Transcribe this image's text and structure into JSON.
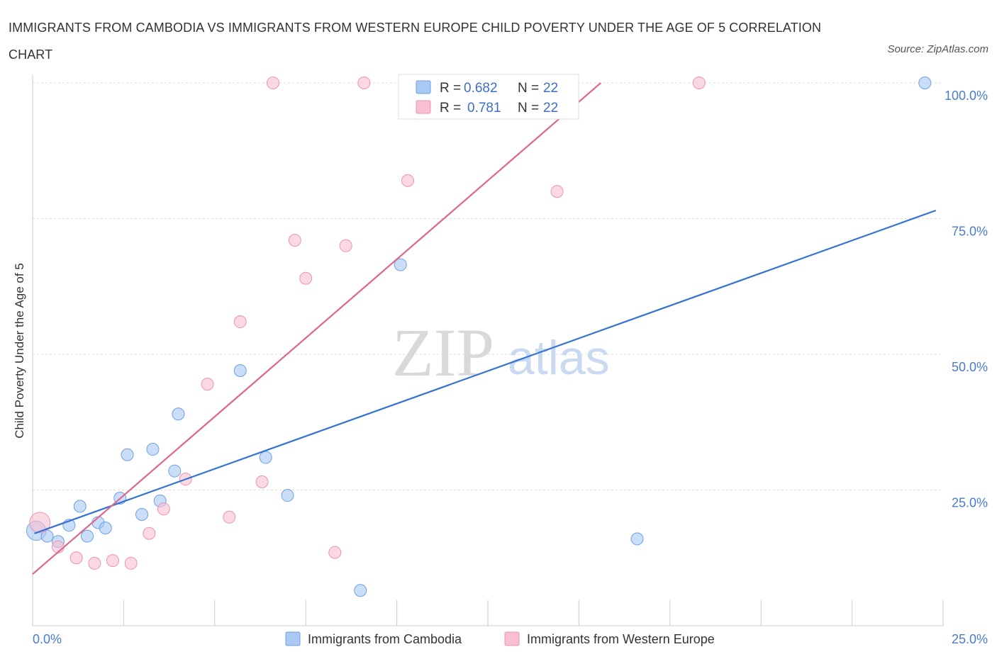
{
  "title": "IMMIGRANTS FROM CAMBODIA VS IMMIGRANTS FROM WESTERN EUROPE CHILD POVERTY UNDER THE AGE OF 5 CORRELATION CHART",
  "source": "Source: ZipAtlas.com",
  "watermark": {
    "zip": "ZIP",
    "atlas": "atlas"
  },
  "stats": [
    {
      "r_label": "R =",
      "r_value": "0.682",
      "n_label": "N =",
      "n_value": "22"
    },
    {
      "r_label": "R =",
      "r_value": "0.781",
      "n_label": "N =",
      "n_value": "22"
    }
  ],
  "colors": {
    "cambodia_fill": "#a9c8f3",
    "cambodia_stroke": "#6f9fe0",
    "cambodia_line": "#3272d3",
    "weurope_fill": "#f7bfd0",
    "weurope_stroke": "#ec93b0",
    "weurope_line": "#e0668f",
    "tick": "#4a7bd0",
    "grid": "#dddddd"
  },
  "chart_data": {
    "type": "scatter",
    "title": "IMMIGRANTS FROM CAMBODIA VS IMMIGRANTS FROM WESTERN EUROPE CHILD POVERTY UNDER THE AGE OF 5 CORRELATION CHART",
    "xlabel": "",
    "ylabel": "Child Poverty Under the Age of 5",
    "xlim": [
      0,
      25
    ],
    "ylim": [
      0,
      100
    ],
    "x_tick_labels": [
      "0.0%",
      "25.0%"
    ],
    "y_ticks": [
      25,
      50,
      75,
      100
    ],
    "y_tick_labels": [
      "25.0%",
      "50.0%",
      "75.0%",
      "100.0%"
    ],
    "grid": true,
    "legend_position": "bottom",
    "series": [
      {
        "name": "Immigrants from Cambodia",
        "points": [
          {
            "x": 0.1,
            "y": 17.5,
            "s": 1.6
          },
          {
            "x": 0.4,
            "y": 16.5
          },
          {
            "x": 0.7,
            "y": 15.5
          },
          {
            "x": 1.0,
            "y": 18.5
          },
          {
            "x": 1.3,
            "y": 22.0
          },
          {
            "x": 1.5,
            "y": 16.5
          },
          {
            "x": 1.8,
            "y": 19.0
          },
          {
            "x": 2.0,
            "y": 18.0
          },
          {
            "x": 2.4,
            "y": 23.5
          },
          {
            "x": 2.6,
            "y": 31.5
          },
          {
            "x": 3.0,
            "y": 20.5
          },
          {
            "x": 3.3,
            "y": 32.5
          },
          {
            "x": 3.5,
            "y": 23.0
          },
          {
            "x": 3.9,
            "y": 28.5
          },
          {
            "x": 4.0,
            "y": 39.0
          },
          {
            "x": 5.7,
            "y": 47.0
          },
          {
            "x": 6.4,
            "y": 31.0
          },
          {
            "x": 7.0,
            "y": 24.0
          },
          {
            "x": 9.0,
            "y": 6.5
          },
          {
            "x": 10.1,
            "y": 66.5
          },
          {
            "x": 16.6,
            "y": 16.0
          },
          {
            "x": 24.5,
            "y": 100.0
          }
        ],
        "trend": {
          "x": [
            0.05,
            24.8
          ],
          "y": [
            17.0,
            76.5
          ]
        }
      },
      {
        "name": "Immigrants from Western Europe",
        "points": [
          {
            "x": 0.2,
            "y": 19.0,
            "s": 1.7
          },
          {
            "x": 0.7,
            "y": 14.5
          },
          {
            "x": 1.2,
            "y": 12.5
          },
          {
            "x": 1.7,
            "y": 11.5
          },
          {
            "x": 2.2,
            "y": 12.0
          },
          {
            "x": 2.7,
            "y": 11.5
          },
          {
            "x": 3.2,
            "y": 17.0
          },
          {
            "x": 3.6,
            "y": 21.5
          },
          {
            "x": 4.2,
            "y": 27.0
          },
          {
            "x": 4.8,
            "y": 44.5
          },
          {
            "x": 5.4,
            "y": 20.0
          },
          {
            "x": 5.7,
            "y": 56.0
          },
          {
            "x": 6.3,
            "y": 26.5
          },
          {
            "x": 6.6,
            "y": 100.0
          },
          {
            "x": 7.2,
            "y": 71.0
          },
          {
            "x": 7.5,
            "y": 64.0
          },
          {
            "x": 8.3,
            "y": 13.5
          },
          {
            "x": 8.6,
            "y": 70.0
          },
          {
            "x": 9.1,
            "y": 100.0
          },
          {
            "x": 10.3,
            "y": 82.0
          },
          {
            "x": 14.4,
            "y": 80.0
          },
          {
            "x": 18.3,
            "y": 100.0
          }
        ],
        "trend": {
          "x": [
            0.0,
            15.6
          ],
          "y": [
            9.5,
            100.0
          ]
        }
      }
    ]
  }
}
